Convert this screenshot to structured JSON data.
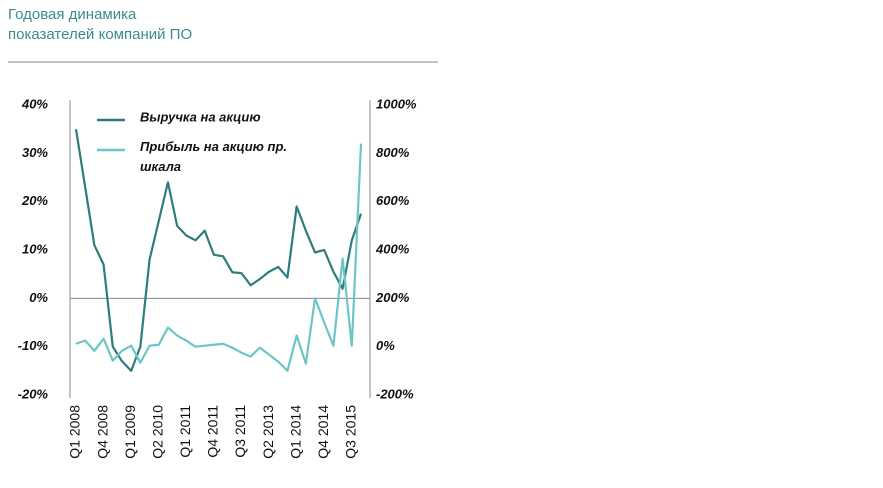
{
  "chart_data": {
    "type": "line",
    "title": [
      "Годовая динамика",
      "показателей компаний ПО"
    ],
    "categories": [
      "Q1 2008",
      null,
      null,
      "Q4 2008",
      null,
      null,
      "Q1 2009",
      null,
      null,
      "Q2 2010",
      null,
      null,
      "Q1 2011",
      null,
      null,
      "Q4 2011",
      null,
      null,
      "Q3 2011",
      null,
      null,
      "Q2 2013",
      null,
      null,
      "Q1 2014",
      null,
      null,
      "Q4 2014",
      null,
      null,
      "Q3 2015",
      null
    ],
    "series": [
      {
        "name": "Выручка на акцию",
        "color": "#2e7d7b",
        "axis": "y",
        "values": [
          35,
          23,
          11,
          7,
          -10,
          -13,
          -15,
          -10,
          8,
          16,
          24,
          15,
          13,
          12,
          14,
          9,
          8.7,
          5.4,
          5.2,
          2.7,
          4,
          5.5,
          6.5,
          4.3,
          19,
          14,
          9.5,
          10,
          5.5,
          2,
          12,
          17.5
        ]
      },
      {
        "name": "Прибыль на акцию пр. шкала",
        "color": "#6cc6c6",
        "axis": "y2",
        "values": [
          12,
          25,
          -17,
          33,
          -58,
          -17,
          4,
          -66,
          4,
          8,
          79,
          46,
          25,
          0,
          4,
          8,
          12,
          -4,
          -25,
          -41,
          -4,
          -33,
          -62,
          -100,
          46,
          -70,
          200,
          100,
          4,
          365,
          4,
          840
        ]
      }
    ],
    "ylim": [
      -20,
      40
    ],
    "yticks": [
      {
        "value": -20,
        "label": "-20%"
      },
      {
        "value": -10,
        "label": "-10%"
      },
      {
        "value": 0,
        "label": "0%"
      },
      {
        "value": 10,
        "label": "10%"
      },
      {
        "value": 20,
        "label": "20%"
      },
      {
        "value": 30,
        "label": "30%"
      },
      {
        "value": 40,
        "label": "40%"
      }
    ],
    "y2lim": [
      -200,
      1000
    ],
    "y2ticks": [
      {
        "value": -200,
        "label": "-200%"
      },
      {
        "value": 0,
        "label": "0%"
      },
      {
        "value": 200,
        "label": "200%"
      },
      {
        "value": 400,
        "label": "400%"
      },
      {
        "value": 600,
        "label": "600%"
      },
      {
        "value": 800,
        "label": "800%"
      },
      {
        "value": 1000,
        "label": "1000%"
      }
    ]
  }
}
